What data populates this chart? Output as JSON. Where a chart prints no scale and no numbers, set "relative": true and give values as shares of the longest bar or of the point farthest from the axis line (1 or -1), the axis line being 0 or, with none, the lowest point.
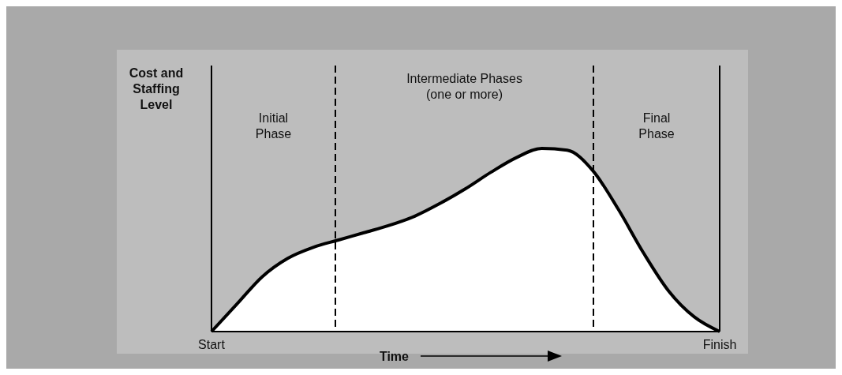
{
  "chart_data": {
    "type": "area",
    "relative": true,
    "ylabel": "Cost and Staffing Level",
    "xlabel": "Time",
    "categories": [
      "Start",
      null,
      null,
      null,
      null,
      null,
      null,
      null,
      null,
      null,
      null,
      null,
      null,
      null,
      null,
      null,
      null,
      null,
      null,
      null,
      "Finish"
    ],
    "series": [
      {
        "color": "#ffffff",
        "values": [
          0,
          0.15,
          0.3,
          0.4,
          0.46,
          0.5,
          0.54,
          0.58,
          0.63,
          0.7,
          0.78,
          0.87,
          0.95,
          1,
          0.99,
          0.88,
          0.67,
          0.43,
          0.22,
          0.08,
          0
        ]
      }
    ],
    "annotations": [
      "Initial Phase",
      "Intermediate Phases (one or more)",
      "Final Phase"
    ]
  }
}
